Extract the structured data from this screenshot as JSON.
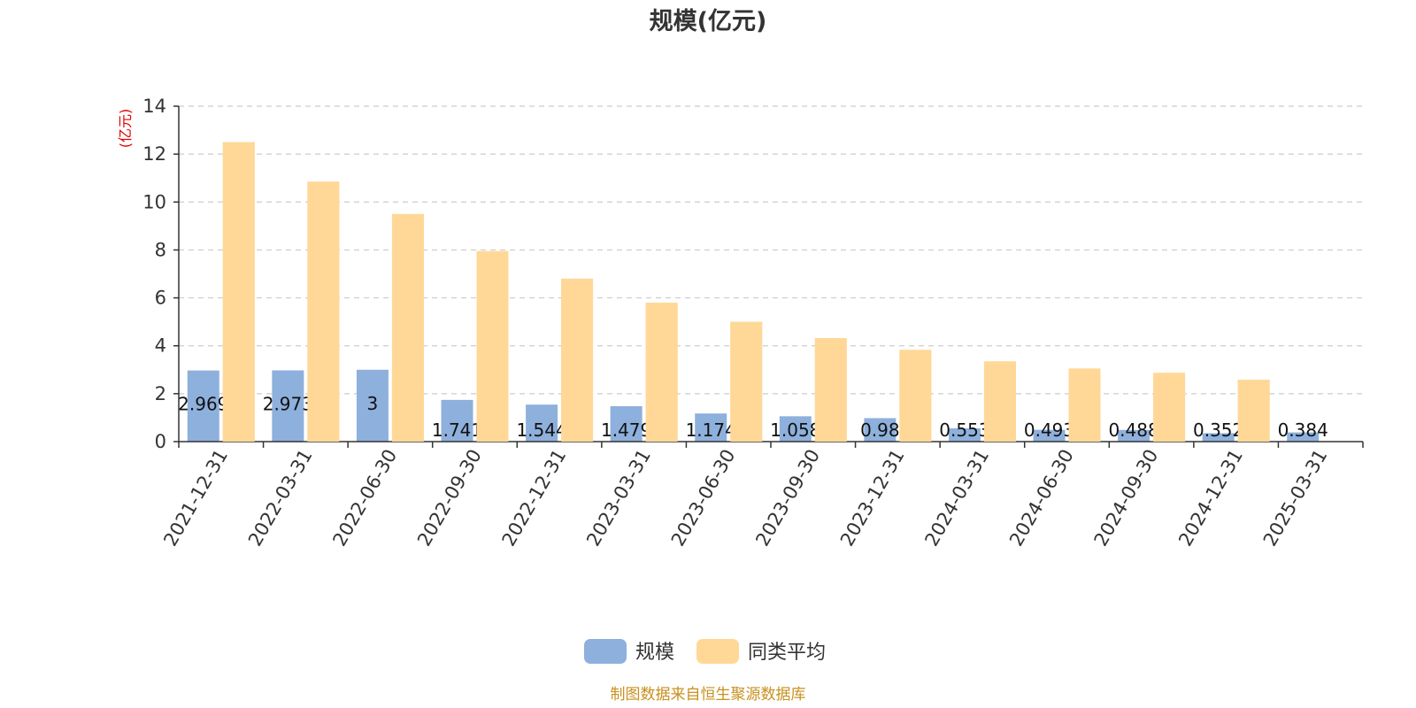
{
  "chart_data": {
    "type": "bar",
    "title": "规模(亿元)",
    "ylabel": "(亿元)",
    "ylim": [
      0,
      14
    ],
    "yticks": [
      0,
      2,
      4,
      6,
      8,
      10,
      12,
      14
    ],
    "categories": [
      "2021-12-31",
      "2022-03-31",
      "2022-06-30",
      "2022-09-30",
      "2022-12-31",
      "2023-03-31",
      "2023-06-30",
      "2023-09-30",
      "2023-12-31",
      "2024-03-31",
      "2024-06-30",
      "2024-09-30",
      "2024-12-31",
      "2025-03-31"
    ],
    "series": [
      {
        "name": "规模",
        "color": "#8eb0dc",
        "values": [
          2.969,
          2.973,
          3,
          1.741,
          1.544,
          1.479,
          1.174,
          1.058,
          0.98,
          0.553,
          0.493,
          0.488,
          0.352,
          0.384
        ],
        "labels": [
          "2.969",
          "2.973",
          "3",
          "1.741",
          "1.544",
          "1.479",
          "1.174",
          "1.058",
          "0.98",
          "0.553",
          "0.493",
          "0.488",
          "0.352",
          "0.384"
        ]
      },
      {
        "name": "同类平均",
        "color": "#ffd898",
        "values": [
          12.5,
          10.85,
          9.5,
          7.95,
          6.8,
          5.8,
          5.0,
          4.32,
          3.83,
          3.35,
          3.05,
          2.87,
          2.58,
          null
        ]
      }
    ],
    "grid": true,
    "legend_position": "bottom-center"
  },
  "footer": "制图数据来自恒生聚源数据库"
}
